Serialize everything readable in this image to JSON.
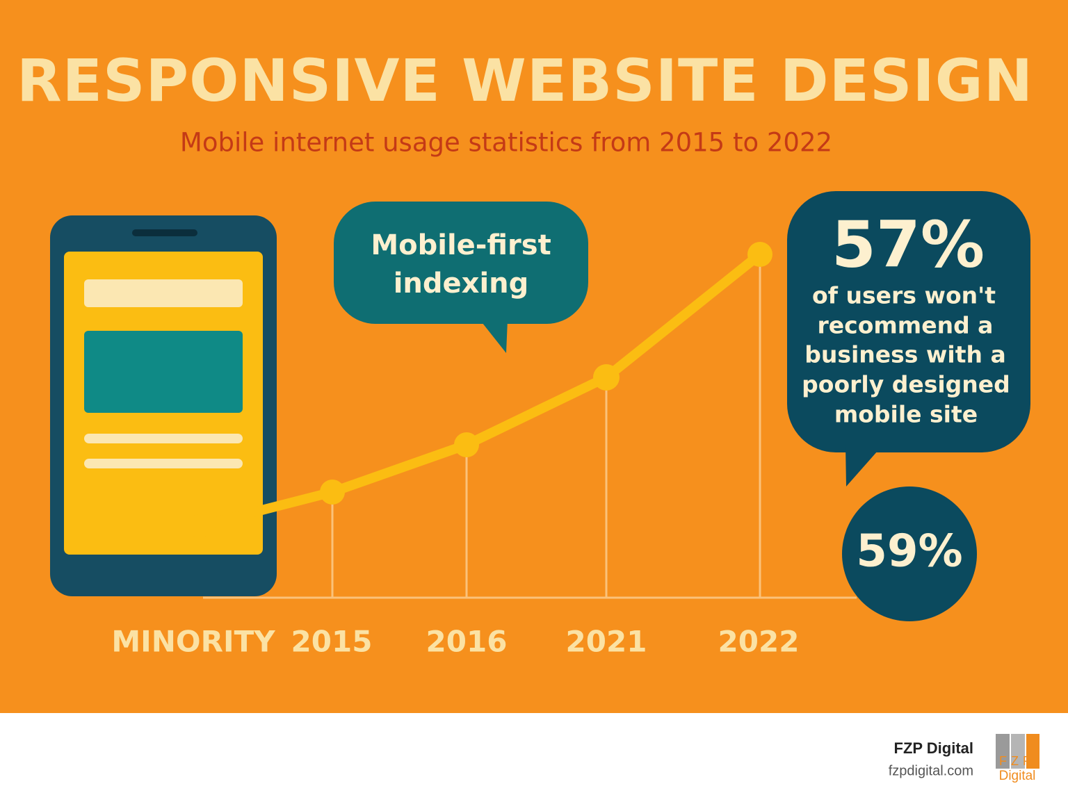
{
  "header": {
    "title": "RESPONSIVE WEBSITE DESIGN",
    "subtitle": "Mobile internet usage statistics from 2015 to 2022"
  },
  "callouts": {
    "indexing": {
      "lines": [
        "Mobile-first",
        "indexing"
      ]
    },
    "stat": {
      "headline": "57%",
      "lines": [
        "of users won't",
        "recommend a",
        "business with a",
        "poorly designed",
        "mobile site"
      ]
    },
    "badge": "59%"
  },
  "timeline": {
    "labels": [
      "MINORITY",
      "2015",
      "2016",
      "2021",
      "2022"
    ]
  },
  "footer": {
    "brand": "FZP Digital",
    "url": "fzpdigital.com",
    "logo": {
      "top": "FZP",
      "bottom": "Digital"
    }
  }
}
